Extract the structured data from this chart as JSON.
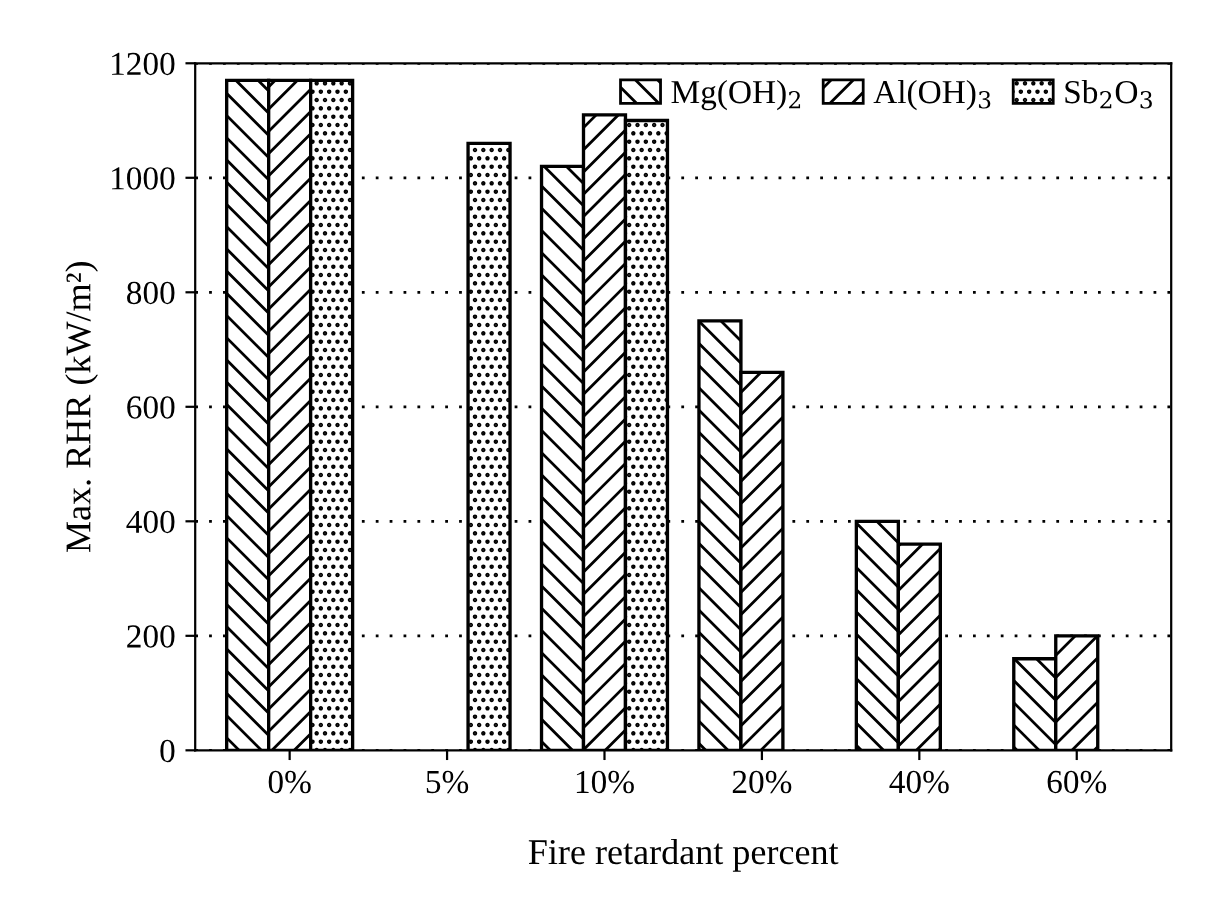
{
  "chart_data": {
    "type": "bar",
    "xlabel": "Fire retardant percent",
    "ylabel": "Max. RHR (kW/m²)",
    "categories": [
      "0%",
      "5%",
      "10%",
      "20%",
      "40%",
      "60%"
    ],
    "series": [
      {
        "name": "Mg(OH)$_{2}$",
        "color": "#000000",
        "values": [
          1170,
          null,
          1020,
          750,
          400,
          160
        ]
      },
      {
        "name": "Al(OH)$_{3}$",
        "color": "#000000",
        "values": [
          1170,
          null,
          1110,
          660,
          360,
          200
        ]
      },
      {
        "name": "Sb$_{2}$O$_{3}$",
        "color": "#000000",
        "values": [
          1170,
          1060,
          1100,
          null,
          null,
          null
        ]
      }
    ],
    "ylim": [
      0,
      1200
    ],
    "yticks": [
      0,
      200,
      400,
      600,
      800,
      1000,
      1200
    ],
    "grid": "y",
    "legend": "top right"
  }
}
